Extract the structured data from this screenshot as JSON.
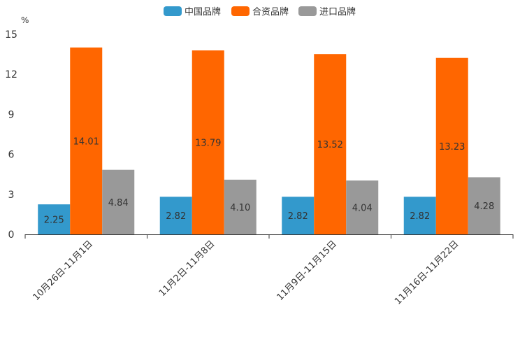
{
  "chart_data": {
    "type": "bar",
    "title": "",
    "xlabel": "",
    "ylabel": "%",
    "ylim": [
      0,
      15
    ],
    "yticks": [
      0,
      3,
      6,
      9,
      12,
      15
    ],
    "categories": [
      "10月26日-11月1日",
      "11月2日-11月8日",
      "11月9日-11月15日",
      "11月16日-11月22日"
    ],
    "series": [
      {
        "name": "中国品牌",
        "color": "#3399cc",
        "values": [
          2.25,
          2.82,
          2.82,
          2.82
        ],
        "labels": [
          "2.25",
          "2.82",
          "2.82",
          "2.82"
        ]
      },
      {
        "name": "合资品牌",
        "color": "#ff6600",
        "values": [
          14.01,
          13.79,
          13.52,
          13.23
        ],
        "labels": [
          "14.01",
          "13.79",
          "13.52",
          "13.23"
        ]
      },
      {
        "name": "进口品牌",
        "color": "#999999",
        "values": [
          4.84,
          4.1,
          4.04,
          4.28
        ],
        "labels": [
          "4.84",
          "4.10",
          "4.04",
          "4.28"
        ]
      }
    ],
    "legend_position": "top-center",
    "grid": false
  }
}
